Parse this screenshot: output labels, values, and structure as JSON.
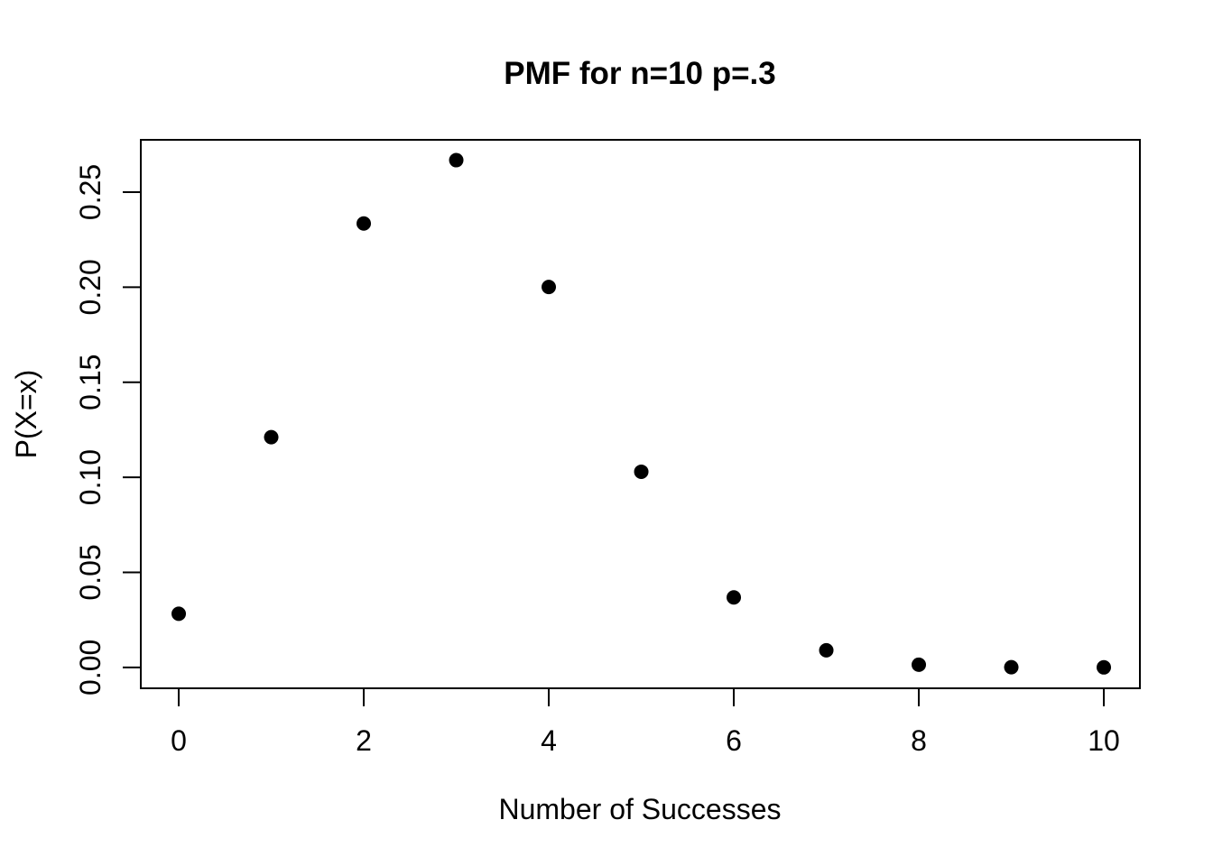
{
  "page": {
    "background": "#ffffff"
  },
  "chart_data": {
    "type": "scatter",
    "title": "PMF for n=10 p=.3",
    "xlabel": "Number of Successes",
    "ylabel": "P(X=x)",
    "x": [
      0,
      1,
      2,
      3,
      4,
      5,
      6,
      7,
      8,
      9,
      10
    ],
    "y": [
      0.0282,
      0.1211,
      0.2335,
      0.2668,
      0.2001,
      0.1029,
      0.0368,
      0.009,
      0.0014,
      0.0001,
      6e-06
    ],
    "xticks": [
      0,
      2,
      4,
      6,
      8,
      10
    ],
    "xtick_labels": [
      "0",
      "2",
      "4",
      "6",
      "8",
      "10"
    ],
    "yticks": [
      0,
      0.05,
      0.1,
      0.15,
      0.2,
      0.25
    ],
    "ytick_labels": [
      "0.00",
      "0.05",
      "0.10",
      "0.15",
      "0.20",
      "0.25"
    ],
    "xlim": [
      -0.41,
      10.39
    ],
    "ylim": [
      -0.011,
      0.2775
    ],
    "grid": false,
    "legend_position": "none",
    "marker": "filled-circle",
    "point_color": "#000000",
    "axis_color": "#000000",
    "background": "#ffffff"
  }
}
